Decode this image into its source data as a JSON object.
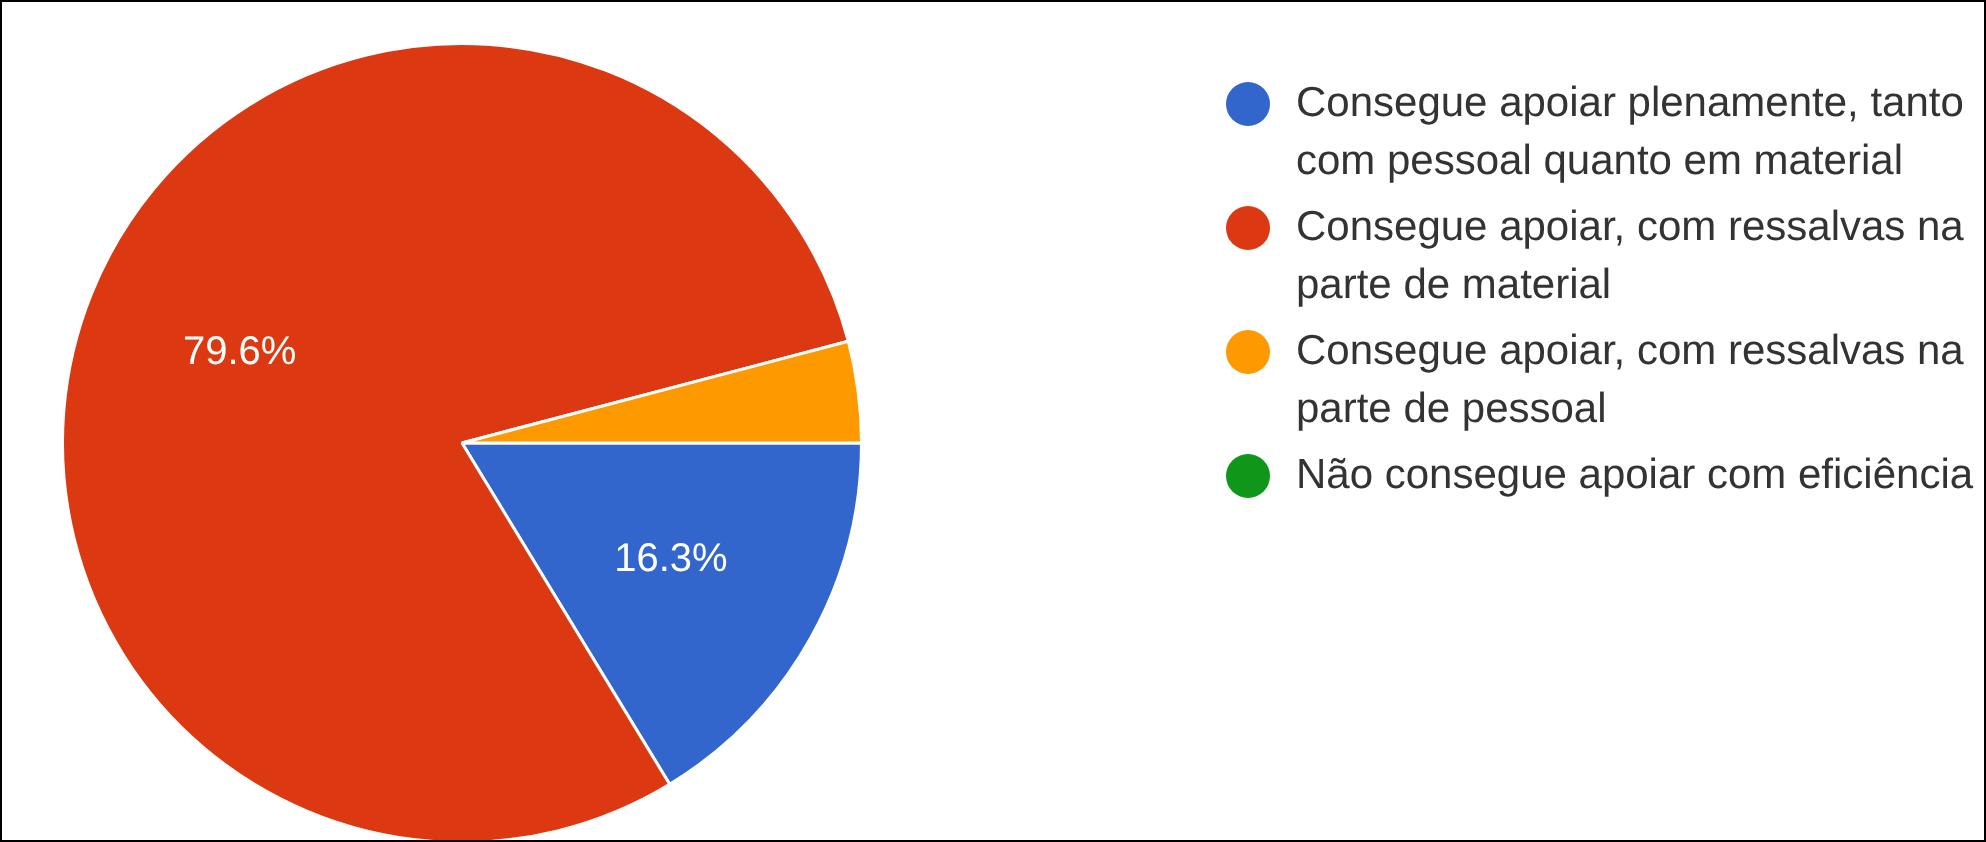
{
  "chart_data": {
    "type": "pie",
    "categories": [
      "Consegue apoiar plenamente, tanto com pessoal quanto em material",
      "Consegue apoiar, com ressalvas na parte de material",
      "Consegue apoiar, com ressalvas na parte de pessoal",
      "Não consegue apoiar com eficiência"
    ],
    "values": [
      16.3,
      79.6,
      4.1,
      0
    ],
    "colors": [
      "#3366cc",
      "#dc3912",
      "#ff9900",
      "#109618"
    ],
    "value_labels": [
      "16.3%",
      "79.6%",
      null,
      null
    ],
    "legend": "right"
  }
}
